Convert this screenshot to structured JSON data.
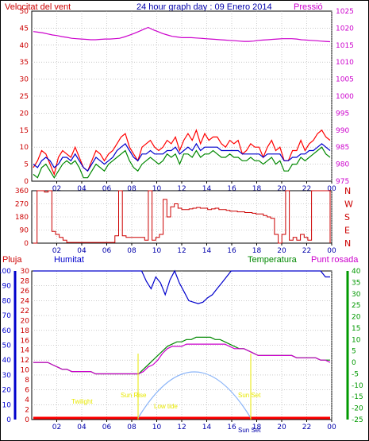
{
  "header": {
    "title": "24 hour graph day : 09 Enero 2014",
    "left_label": "Velocitat del vent",
    "right_label": "Pressió"
  },
  "colors": {
    "wind_axis": "#cc0000",
    "pressure_axis": "#cc00cc",
    "title": "#0000aa",
    "rain_axis": "#cc0000",
    "humidity_axis": "#0000cc",
    "temp_axis": "#009900",
    "dew_label": "#cc00cc",
    "sun_arc": "#8ab4f8",
    "sun_text": "#e8e800"
  },
  "chart_data": [
    {
      "type": "line",
      "name": "wind-chart",
      "x_ticks": [
        "02",
        "04",
        "06",
        "08",
        "10",
        "12",
        "14",
        "16",
        "18",
        "20",
        "22",
        "00"
      ],
      "y_left_ticks": [
        "0",
        "5",
        "10",
        "15",
        "20",
        "25",
        "30",
        "35",
        "40",
        "45",
        "50"
      ],
      "y_right_ticks": [
        "975",
        "980",
        "985",
        "990",
        "995",
        "1000",
        "1005",
        "1010",
        "1015",
        "1020",
        "1025"
      ],
      "ylim_left": [
        0,
        50
      ],
      "ylim_right": [
        975,
        1025
      ],
      "series": [
        {
          "name": "",
          "color": "#ff0000",
          "y": [
            4,
            6,
            9,
            8,
            5,
            2,
            7,
            9,
            8,
            7,
            10,
            7,
            4,
            3,
            6,
            9,
            8,
            6,
            8,
            9,
            11,
            13,
            14,
            10,
            8,
            6,
            10,
            11,
            12,
            10,
            9,
            10,
            12,
            11,
            13,
            9,
            12,
            14,
            12,
            15,
            11,
            14,
            12,
            13,
            13,
            11,
            10,
            12,
            11,
            12,
            8,
            9,
            11,
            10,
            10,
            7,
            10,
            12,
            9,
            10,
            6,
            6,
            9,
            9,
            12,
            9,
            11,
            12,
            14,
            15,
            13,
            12
          ]
        },
        {
          "name": "",
          "color": "#0000cc",
          "y": [
            5,
            4,
            6,
            7,
            6,
            4,
            5,
            7,
            7,
            6,
            8,
            6,
            4,
            3,
            5,
            7,
            6,
            5,
            6,
            7,
            9,
            10,
            11,
            9,
            7,
            6,
            8,
            8,
            9,
            8,
            8,
            8,
            9,
            9,
            10,
            8,
            9,
            10,
            9,
            11,
            9,
            10,
            10,
            10,
            10,
            9,
            9,
            9,
            9,
            9,
            8,
            8,
            8,
            8,
            8,
            7,
            8,
            8,
            8,
            8,
            6,
            6,
            7,
            7,
            8,
            8,
            9,
            9,
            10,
            11,
            10,
            9
          ]
        },
        {
          "name": "",
          "color": "#008800",
          "y": [
            2,
            1,
            4,
            5,
            3,
            1,
            3,
            5,
            6,
            5,
            6,
            4,
            1,
            1,
            3,
            5,
            4,
            3,
            5,
            6,
            7,
            8,
            9,
            6,
            4,
            3,
            5,
            6,
            7,
            6,
            5,
            6,
            8,
            7,
            8,
            5,
            8,
            8,
            7,
            9,
            7,
            8,
            8,
            9,
            8,
            7,
            7,
            8,
            7,
            7,
            6,
            6,
            7,
            6,
            6,
            5,
            6,
            7,
            5,
            6,
            3,
            3,
            5,
            5,
            7,
            6,
            7,
            8,
            9,
            10,
            8,
            7
          ]
        },
        {
          "name": "",
          "color": "#cc00cc",
          "axis": "right",
          "y": [
            1019,
            1018.8,
            1018.6,
            1018.3,
            1018,
            1017.8,
            1017.5,
            1017.3,
            1017,
            1016.9,
            1016.8,
            1016.7,
            1016.6,
            1016.6,
            1016.7,
            1016.8,
            1016.8,
            1016.9,
            1017,
            1017.4,
            1017.9,
            1018.4,
            1019,
            1019.6,
            1020.2,
            1019.5,
            1019,
            1018.4,
            1018,
            1017.6,
            1017.4,
            1017.2,
            1017.2,
            1017.2,
            1017.1,
            1017,
            1016.9,
            1016.8,
            1016.7,
            1016.6,
            1016.5,
            1016.4,
            1016.3,
            1016.2,
            1016.1,
            1016.1,
            1016.2,
            1016.4,
            1016.5,
            1016.6,
            1016.7,
            1016.8,
            1016.9,
            1016.9,
            1016.9,
            1016.8,
            1016.6,
            1016.5,
            1016.4,
            1016.3,
            1016.2,
            1016.1,
            1016
          ]
        }
      ]
    },
    {
      "type": "line",
      "name": "wind-direction-chart",
      "x_ticks": [
        "02",
        "04",
        "06",
        "08",
        "10",
        "12",
        "14",
        "16",
        "18",
        "20",
        "22",
        "00"
      ],
      "y_left_ticks": [
        "0",
        "90",
        "180",
        "270",
        "360"
      ],
      "y_right_ticks": [
        "N",
        "E",
        "S",
        "W",
        "N"
      ],
      "ylim": [
        0,
        360
      ],
      "series": [
        {
          "name": "",
          "color": "#cc0000",
          "y": [
            0,
            360,
            360,
            350,
            360,
            80,
            60,
            40,
            20,
            5,
            5,
            5,
            5,
            5,
            5,
            5,
            5,
            5,
            5,
            5,
            5,
            5,
            50,
            360,
            50,
            40,
            40,
            40,
            40,
            40,
            20,
            360,
            20,
            40,
            60,
            300,
            180,
            250,
            270,
            240,
            230,
            230,
            235,
            240,
            245,
            240,
            240,
            230,
            235,
            240,
            230,
            230,
            225,
            220,
            220,
            215,
            215,
            210,
            210,
            205,
            200,
            200,
            190,
            180,
            170,
            60,
            0,
            60,
            360,
            20,
            40,
            20,
            60,
            40,
            20,
            360,
            360,
            360,
            360,
            360,
            0
          ]
        }
      ]
    },
    {
      "type": "line",
      "name": "humidity-temperature-chart",
      "legend": [
        "Pluja",
        "Humitat",
        "Temperatura",
        "Punt rosada"
      ],
      "x_ticks": [
        "02",
        "04",
        "06",
        "08",
        "10",
        "12",
        "14",
        "16",
        "18",
        "20",
        "22",
        "00"
      ],
      "y_hum_ticks": [
        "0",
        "10",
        "20",
        "30",
        "40",
        "50",
        "60",
        "70",
        "80",
        "90",
        "100"
      ],
      "y_rain_ticks": [
        "0",
        "2",
        "4",
        "6",
        "8",
        "10",
        "12",
        "14",
        "16",
        "18",
        "20",
        "22",
        "24",
        "26",
        "28",
        "30"
      ],
      "y_temp_ticks": [
        "-25",
        "-20",
        "-15",
        "-10",
        "-5",
        "0",
        "5",
        "10",
        "15",
        "20",
        "25",
        "30",
        "35",
        "40"
      ],
      "ylim_hum": [
        0,
        100
      ],
      "ylim_temp": [
        -25,
        40
      ],
      "series": [
        {
          "name": "Humitat",
          "color": "#0000cc",
          "y": [
            100,
            100,
            100,
            100,
            100,
            100,
            100,
            100,
            100,
            100,
            100,
            100,
            100,
            100,
            100,
            100,
            100,
            100,
            100,
            100,
            100,
            100,
            100,
            100,
            93,
            88,
            96,
            92,
            84,
            94,
            100,
            92,
            86,
            80,
            79,
            78,
            79,
            82,
            84,
            88,
            92,
            96,
            100,
            100,
            100,
            100,
            100,
            100,
            100,
            100,
            100,
            100,
            100,
            100,
            100,
            100,
            100,
            100,
            100,
            100,
            100,
            100,
            96,
            96
          ]
        },
        {
          "name": "Temperatura",
          "color": "#008800",
          "y": [
            0,
            0,
            0,
            0,
            -1,
            -2,
            -3,
            -3,
            -4,
            -4,
            -4,
            -4,
            -4,
            -5,
            -5,
            -5,
            -5,
            -5,
            -5,
            -5,
            -5,
            -5,
            -5,
            -3,
            -1,
            1,
            3,
            5,
            7,
            8,
            9,
            9,
            10,
            10,
            11,
            11,
            11,
            11,
            10,
            10,
            9,
            8,
            7,
            6,
            6,
            5,
            4,
            3,
            3,
            3,
            3,
            3,
            3,
            3,
            3,
            2,
            2,
            2,
            2,
            2,
            1,
            1,
            1
          ]
        },
        {
          "name": "Punt rosada",
          "color": "#cc00cc",
          "y": [
            0,
            0,
            0,
            0,
            -1,
            -2,
            -3,
            -3,
            -4,
            -4,
            -4,
            -4,
            -4,
            -5,
            -5,
            -5,
            -5,
            -5,
            -5,
            -5,
            -5,
            -5,
            -5,
            -4,
            -2,
            -1,
            1,
            4,
            6,
            7,
            7,
            7,
            8,
            8,
            8,
            8,
            8,
            8,
            8,
            8,
            8,
            7,
            6,
            6,
            6,
            5,
            4,
            3,
            3,
            3,
            3,
            3,
            3,
            3,
            3,
            2,
            2,
            2,
            2,
            2,
            1,
            1,
            0
          ]
        }
      ],
      "sun_labels": [
        "Twilight",
        "Sun Rise",
        "Sun Set",
        "Sun Set",
        "Low tide"
      ]
    }
  ]
}
